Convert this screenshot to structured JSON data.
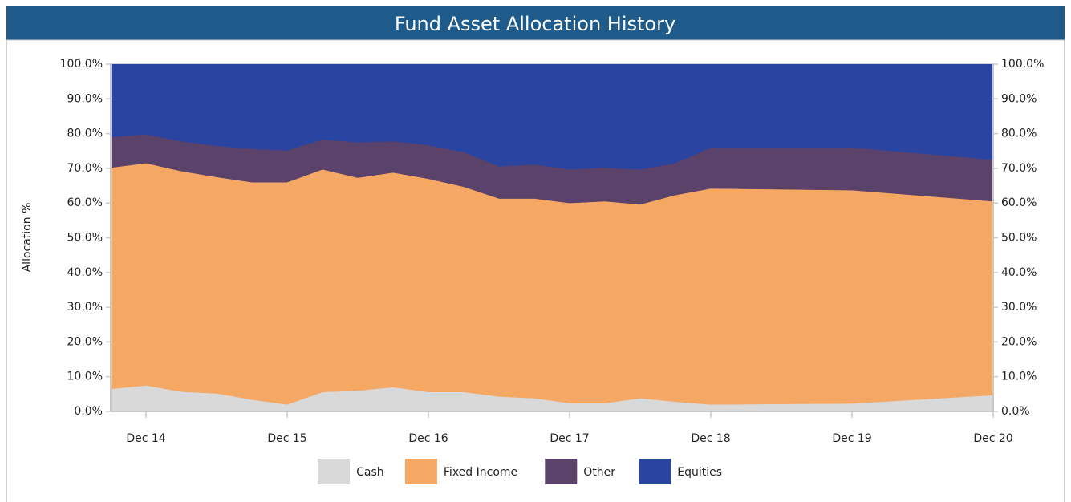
{
  "chart_data": {
    "type": "stacked_area",
    "title": "Fund Asset Allocation History",
    "ylabel": "Allocation %",
    "x": [
      "Sep 14",
      "Dec 14",
      "Mar 15",
      "Jun 15",
      "Sep 15",
      "Dec 15",
      "Mar 16",
      "Jun 16",
      "Sep 16",
      "Dec 16",
      "Mar 17",
      "Jun 17",
      "Sep 17",
      "Dec 17",
      "Mar 18",
      "Jun 18",
      "Sep 18",
      "Dec 18",
      "Dec 19",
      "Dec 20"
    ],
    "xticks": [
      "Dec 14",
      "Dec 15",
      "Dec 16",
      "Dec 17",
      "Dec 18",
      "Dec 19",
      "Dec 20"
    ],
    "ylim": [
      0,
      100
    ],
    "yticks": [
      {
        "value": 0,
        "label": "0.0%"
      },
      {
        "value": 10,
        "label": "10.0%"
      },
      {
        "value": 20,
        "label": "20.0%"
      },
      {
        "value": 30,
        "label": "30.0%"
      },
      {
        "value": 40,
        "label": "40.0%"
      },
      {
        "value": 50,
        "label": "50.0%"
      },
      {
        "value": 60,
        "label": "60.0%"
      },
      {
        "value": 70,
        "label": "70.0%"
      },
      {
        "value": 80,
        "label": "80.0%"
      },
      {
        "value": 90,
        "label": "90.0%"
      },
      {
        "value": 100,
        "label": "100.0%"
      }
    ],
    "y2lim": [
      0,
      100
    ],
    "y2ticks": [
      {
        "value": 0,
        "label": "0.0%"
      },
      {
        "value": 10,
        "label": "10.0%"
      },
      {
        "value": 20,
        "label": "20.0%"
      },
      {
        "value": 30,
        "label": "30.0%"
      },
      {
        "value": 40,
        "label": "40.0%"
      },
      {
        "value": 50,
        "label": "50.0%"
      },
      {
        "value": 60,
        "label": "60.0%"
      },
      {
        "value": 70,
        "label": "70.0%"
      },
      {
        "value": 80,
        "label": "80.0%"
      },
      {
        "value": 90,
        "label": "90.0%"
      },
      {
        "value": 100,
        "label": "100.0%"
      }
    ],
    "legend": "bottom",
    "series": [
      {
        "name": "Cash",
        "color": "#d9d9d9",
        "values": [
          6.5,
          7.5,
          5.7,
          5.2,
          3.4,
          2.0,
          5.6,
          6.0,
          7.0,
          5.6,
          5.6,
          4.3,
          3.8,
          2.4,
          2.4,
          3.8,
          2.8,
          2.0,
          2.3,
          4.7
        ]
      },
      {
        "name": "Fixed Income",
        "color": "#f5a764",
        "values": [
          63.7,
          64.0,
          63.5,
          62.3,
          62.6,
          64.0,
          64.1,
          61.3,
          61.8,
          61.4,
          59.1,
          57.0,
          57.5,
          57.6,
          58.1,
          55.8,
          59.5,
          62.2,
          61.4,
          55.8
        ]
      },
      {
        "name": "Other",
        "color": "#5a426b",
        "values": [
          8.8,
          8.3,
          8.6,
          9.0,
          9.6,
          9.2,
          8.6,
          10.2,
          9.0,
          9.7,
          10.0,
          9.3,
          9.8,
          9.7,
          9.7,
          10.1,
          9.2,
          11.8,
          12.3,
          12.0
        ]
      },
      {
        "name": "Equities",
        "color": "#2a44a1",
        "values": [
          21.0,
          20.2,
          22.2,
          23.5,
          24.4,
          24.8,
          21.7,
          22.5,
          22.2,
          23.3,
          25.3,
          29.4,
          28.9,
          30.3,
          29.8,
          30.3,
          28.5,
          24.0,
          24.0,
          27.5
        ]
      }
    ]
  }
}
